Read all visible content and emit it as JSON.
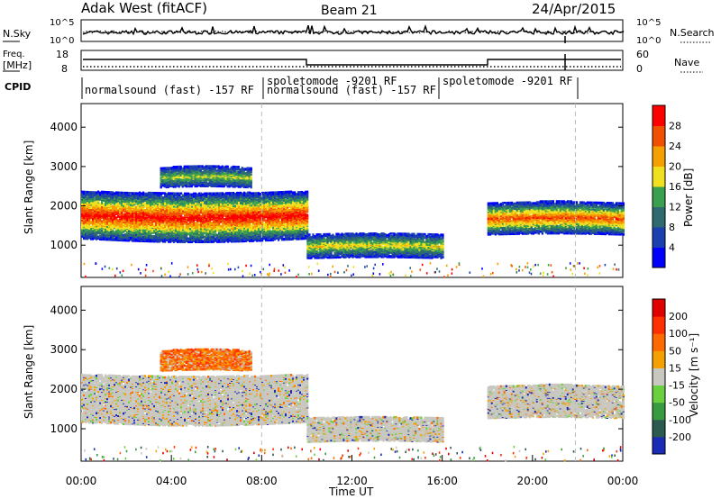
{
  "header": {
    "station": "Adak West (fitACF)",
    "beam": "Beam 21",
    "date": "24/Apr/2015"
  },
  "nsky_panel": {
    "left_label": "N.Sky",
    "right_label": "N.Search",
    "ytick_left": [
      "10^5",
      "10^0"
    ],
    "ytick_right": [
      "10^5",
      "10^0"
    ]
  },
  "freq_panel": {
    "left_label_1": "Freq.",
    "left_label_2": "[MHz]",
    "right_label": "Nave",
    "ytick_left": [
      "18",
      "8"
    ],
    "ytick_right": [
      "60",
      "0"
    ]
  },
  "cpid_panel": {
    "label": "CPID",
    "segments": [
      {
        "text": "normalsound (fast) -157 RF"
      },
      {
        "text": "spoletomode -9201 RF"
      },
      {
        "text": "normalsound (fast) -157 RF"
      },
      {
        "text": "spoletomode -9201 RF"
      }
    ]
  },
  "chart_data": [
    {
      "type": "heatmap",
      "name": "power",
      "ylabel": "Slant Range [km]",
      "ylim": [
        180,
        4600
      ],
      "yticks": [
        "1000",
        "2000",
        "3000",
        "4000"
      ],
      "colorbar_label": "Power [dB]",
      "colorbar_ticks": [
        "4",
        "8",
        "12",
        "16",
        "20",
        "24",
        "28"
      ],
      "colors": [
        "#0000ff",
        "#1a3fb0",
        "#2e6b70",
        "#3aa050",
        "#f0e020",
        "#f5a000",
        "#f05000",
        "#ff0000"
      ],
      "bands": [
        {
          "t_start": 0.0,
          "t_end": 10.0,
          "range_km": [
            1200,
            2400
          ],
          "peak_db": 28
        },
        {
          "t_start": 3.5,
          "t_end": 7.5,
          "range_km": [
            2500,
            3000
          ],
          "peak_db": 14
        },
        {
          "t_start": 10.0,
          "t_end": 16.0,
          "range_km": [
            700,
            1300
          ],
          "peak_db": 16
        },
        {
          "t_start": 18.0,
          "t_end": 24.0,
          "range_km": [
            1300,
            2100
          ],
          "peak_db": 24
        }
      ]
    },
    {
      "type": "heatmap",
      "name": "velocity",
      "ylabel": "Slant Range [km]",
      "ylim": [
        180,
        4600
      ],
      "yticks": [
        "1000",
        "2000",
        "3000",
        "4000"
      ],
      "colorbar_label": "Velocity [m s⁻¹]",
      "colorbar_ticks": [
        "200",
        "100",
        "50",
        "15",
        "-15",
        "-50",
        "-100",
        "-200"
      ],
      "colors": [
        "#1a2bb5",
        "#2a5a50",
        "#3a9a40",
        "#6ad040",
        "#c8c8c0",
        "#f5a000",
        "#ff6a00",
        "#ff3000",
        "#e00000"
      ],
      "xlabel": "Time UT",
      "xticks": [
        "00:00",
        "04:00",
        "08:00",
        "12:00",
        "16:00",
        "20:00",
        "00:00"
      ],
      "xlim_hours": [
        0,
        24
      ]
    }
  ]
}
